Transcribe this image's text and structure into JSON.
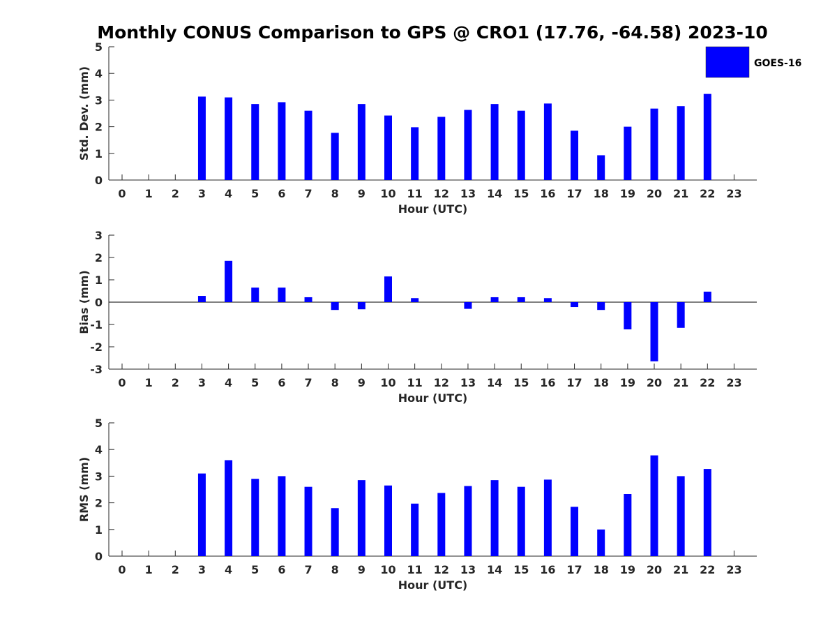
{
  "title": "Monthly CONUS Comparison to GPS @ CRO1 (17.76, -64.58) 2023-10",
  "legend": {
    "label": "GOES-16",
    "color": "#0000ff"
  },
  "chart_data": [
    {
      "type": "bar",
      "categories": [
        "0",
        "1",
        "2",
        "3",
        "4",
        "5",
        "6",
        "7",
        "8",
        "9",
        "10",
        "11",
        "12",
        "13",
        "14",
        "15",
        "16",
        "17",
        "18",
        "19",
        "20",
        "21",
        "22",
        "23"
      ],
      "series": [
        {
          "name": "GOES-16",
          "values": [
            null,
            null,
            null,
            3.13,
            3.1,
            2.85,
            2.92,
            2.6,
            1.77,
            2.85,
            2.42,
            1.98,
            2.37,
            2.63,
            2.85,
            2.6,
            2.87,
            1.85,
            0.93,
            2.0,
            2.68,
            2.77,
            3.23,
            null
          ]
        }
      ],
      "xlabel": "Hour (UTC)",
      "ylabel": "Std. Dev. (mm)",
      "ylim": [
        0,
        5
      ],
      "yticks": [
        "0",
        "1",
        "2",
        "3",
        "4",
        "5"
      ],
      "color": "#0000ff"
    },
    {
      "type": "bar",
      "categories": [
        "0",
        "1",
        "2",
        "3",
        "4",
        "5",
        "6",
        "7",
        "8",
        "9",
        "10",
        "11",
        "12",
        "13",
        "14",
        "15",
        "16",
        "17",
        "18",
        "19",
        "20",
        "21",
        "22",
        "23"
      ],
      "series": [
        {
          "name": "GOES-16",
          "values": [
            null,
            null,
            null,
            0.28,
            1.85,
            0.65,
            0.65,
            0.22,
            -0.35,
            -0.32,
            1.15,
            0.18,
            null,
            -0.3,
            0.22,
            0.22,
            0.18,
            -0.22,
            -0.35,
            -1.22,
            -2.65,
            -1.15,
            0.47,
            null
          ]
        }
      ],
      "xlabel": "Hour (UTC)",
      "ylabel": "Bias (mm)",
      "ylim": [
        -3,
        3
      ],
      "yticks": [
        "-3",
        "-2",
        "-1",
        "0",
        "1",
        "2",
        "3"
      ],
      "color": "#0000ff"
    },
    {
      "type": "bar",
      "categories": [
        "0",
        "1",
        "2",
        "3",
        "4",
        "5",
        "6",
        "7",
        "8",
        "9",
        "10",
        "11",
        "12",
        "13",
        "14",
        "15",
        "16",
        "17",
        "18",
        "19",
        "20",
        "21",
        "22",
        "23"
      ],
      "series": [
        {
          "name": "GOES-16",
          "values": [
            null,
            null,
            null,
            3.1,
            3.6,
            2.9,
            3.0,
            2.6,
            1.8,
            2.85,
            2.65,
            1.97,
            2.37,
            2.63,
            2.85,
            2.6,
            2.87,
            1.85,
            1.0,
            2.33,
            3.78,
            3.0,
            3.27,
            null
          ]
        }
      ],
      "xlabel": "Hour (UTC)",
      "ylabel": "RMS (mm)",
      "ylim": [
        0,
        5
      ],
      "yticks": [
        "0",
        "1",
        "2",
        "3",
        "4",
        "5"
      ],
      "color": "#0000ff"
    }
  ]
}
